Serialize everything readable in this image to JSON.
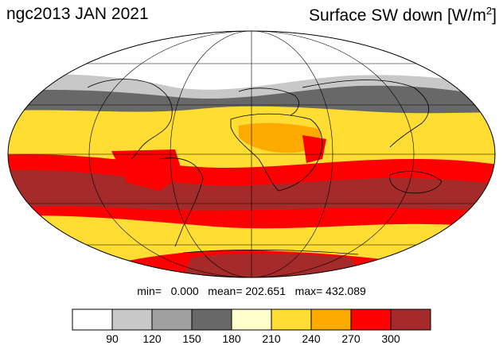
{
  "title": {
    "left": "ngc2013 JAN 2021",
    "right_main": "Surface SW down [W/m",
    "right_sup": "2",
    "right_end": "]"
  },
  "stats": {
    "text": "min=   0.000   mean= 202.651   max= 432.089"
  },
  "legend": {
    "bins": [
      {
        "color": "#ffffff"
      },
      {
        "color": "#c8c8c8"
      },
      {
        "color": "#a0a0a0"
      },
      {
        "color": "#686868"
      },
      {
        "color": "#ffffcc"
      },
      {
        "color": "#ffdd33"
      },
      {
        "color": "#ffaa00"
      },
      {
        "color": "#ff0000"
      },
      {
        "color": "#a52a2a"
      }
    ],
    "ticks": [
      "90",
      "120",
      "150",
      "180",
      "210",
      "240",
      "270",
      "300"
    ]
  },
  "map": {
    "projection": "Mollweide",
    "bands": [
      {
        "name": "arctic-white",
        "color": "#ffffff"
      },
      {
        "name": "north-light-gray",
        "color": "#c8c8c8"
      },
      {
        "name": "north-dark-gray",
        "color": "#686868"
      },
      {
        "name": "north-yellow",
        "color": "#ffdd33"
      },
      {
        "name": "tropic-orange",
        "color": "#ffaa00"
      },
      {
        "name": "equator-yellow",
        "color": "#ffdd33"
      },
      {
        "name": "south-red",
        "color": "#ff0000"
      },
      {
        "name": "south-brown",
        "color": "#a52a2a"
      },
      {
        "name": "southern-ocean-red",
        "color": "#ff0000"
      },
      {
        "name": "southern-ocean-yellow",
        "color": "#ffdd33"
      },
      {
        "name": "antarctic-brown",
        "color": "#a52a2a"
      }
    ]
  }
}
